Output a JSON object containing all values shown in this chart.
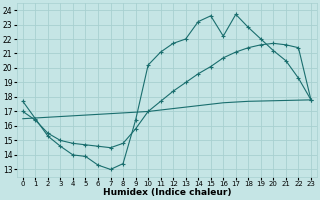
{
  "xlabel": "Humidex (Indice chaleur)",
  "background_color": "#c5e5e5",
  "grid_color": "#a8d0d0",
  "line_color": "#1a6e6e",
  "xlim": [
    -0.5,
    23.5
  ],
  "ylim": [
    12.5,
    24.5
  ],
  "xticks": [
    0,
    1,
    2,
    3,
    4,
    5,
    6,
    7,
    8,
    9,
    10,
    11,
    12,
    13,
    14,
    15,
    16,
    17,
    18,
    19,
    20,
    21,
    22,
    23
  ],
  "yticks": [
    13,
    14,
    15,
    16,
    17,
    18,
    19,
    20,
    21,
    22,
    23,
    24
  ],
  "line1_x": [
    0,
    1,
    2,
    3,
    4,
    5,
    6,
    7,
    8,
    9,
    10,
    11,
    12,
    13,
    14,
    15,
    16,
    17,
    18,
    19,
    20,
    21,
    22,
    23
  ],
  "line1_y": [
    17.7,
    16.5,
    15.3,
    14.6,
    14.0,
    13.9,
    13.3,
    13.0,
    13.4,
    16.4,
    20.2,
    21.1,
    21.7,
    22.0,
    23.2,
    23.6,
    22.2,
    23.7,
    22.8,
    22.0,
    21.2,
    20.5,
    19.3,
    17.8
  ],
  "line2_x": [
    0,
    1,
    2,
    3,
    4,
    5,
    6,
    7,
    8,
    9,
    10,
    11,
    12,
    13,
    14,
    15,
    16,
    17,
    18,
    19,
    20,
    21,
    22,
    23
  ],
  "line2_y": [
    17.0,
    16.4,
    15.5,
    15.0,
    14.8,
    14.7,
    14.6,
    14.5,
    14.8,
    15.8,
    17.0,
    17.7,
    18.4,
    19.0,
    19.6,
    20.1,
    20.7,
    21.1,
    21.4,
    21.6,
    21.7,
    21.6,
    21.4,
    17.8
  ],
  "line3_x": [
    0,
    1,
    2,
    3,
    4,
    5,
    6,
    7,
    8,
    9,
    10,
    11,
    12,
    13,
    14,
    15,
    16,
    17,
    18,
    19,
    20,
    21,
    22,
    23
  ],
  "line3_y": [
    16.5,
    16.55,
    16.6,
    16.65,
    16.7,
    16.75,
    16.8,
    16.85,
    16.9,
    16.95,
    17.0,
    17.1,
    17.2,
    17.3,
    17.4,
    17.5,
    17.6,
    17.65,
    17.7,
    17.72,
    17.74,
    17.76,
    17.78,
    17.8
  ]
}
